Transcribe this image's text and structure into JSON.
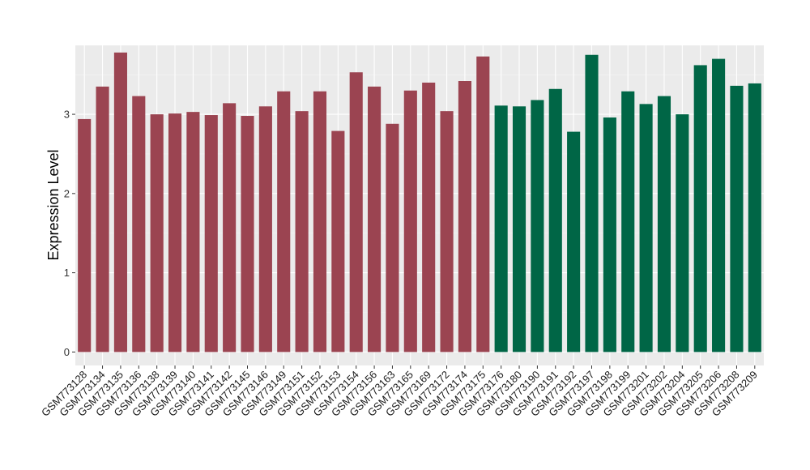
{
  "chart_data": {
    "type": "bar",
    "title": "",
    "xlabel": "",
    "ylabel": "Expression Level",
    "ylim": [
      -0.17,
      3.87
    ],
    "yticks": [
      0,
      1,
      2,
      3
    ],
    "grid": true,
    "legend": "none",
    "colors": {
      "group_a": "#9b4451",
      "group_b": "#006646",
      "panel_bg": "#ebebeb",
      "grid_major": "#ffffff",
      "grid_minor": "#f4f4f4"
    },
    "categories": [
      "GSM773128",
      "GSM773134",
      "GSM773135",
      "GSM773136",
      "GSM773138",
      "GSM773139",
      "GSM773140",
      "GSM773141",
      "GSM773142",
      "GSM773145",
      "GSM773146",
      "GSM773149",
      "GSM773151",
      "GSM773152",
      "GSM773153",
      "GSM773154",
      "GSM773156",
      "GSM773163",
      "GSM773165",
      "GSM773169",
      "GSM773172",
      "GSM773174",
      "GSM773175",
      "GSM773176",
      "GSM773180",
      "GSM773190",
      "GSM773191",
      "GSM773192",
      "GSM773197",
      "GSM773198",
      "GSM773199",
      "GSM773201",
      "GSM773202",
      "GSM773204",
      "GSM773205",
      "GSM773206",
      "GSM773208",
      "GSM773209"
    ],
    "values": [
      2.94,
      3.35,
      3.78,
      3.23,
      3.0,
      3.01,
      3.03,
      2.99,
      3.14,
      2.98,
      3.1,
      3.29,
      3.04,
      3.29,
      2.79,
      3.53,
      3.35,
      2.88,
      3.3,
      3.4,
      3.04,
      3.42,
      3.73,
      3.11,
      3.1,
      3.18,
      3.32,
      2.78,
      3.75,
      2.96,
      3.29,
      3.13,
      3.23,
      3.0,
      3.62,
      3.7,
      3.36,
      3.39
    ],
    "groups": [
      "a",
      "a",
      "a",
      "a",
      "a",
      "a",
      "a",
      "a",
      "a",
      "a",
      "a",
      "a",
      "a",
      "a",
      "a",
      "a",
      "a",
      "a",
      "a",
      "a",
      "a",
      "a",
      "a",
      "b",
      "b",
      "b",
      "b",
      "b",
      "b",
      "b",
      "b",
      "b",
      "b",
      "b",
      "b",
      "b",
      "b",
      "b"
    ]
  }
}
